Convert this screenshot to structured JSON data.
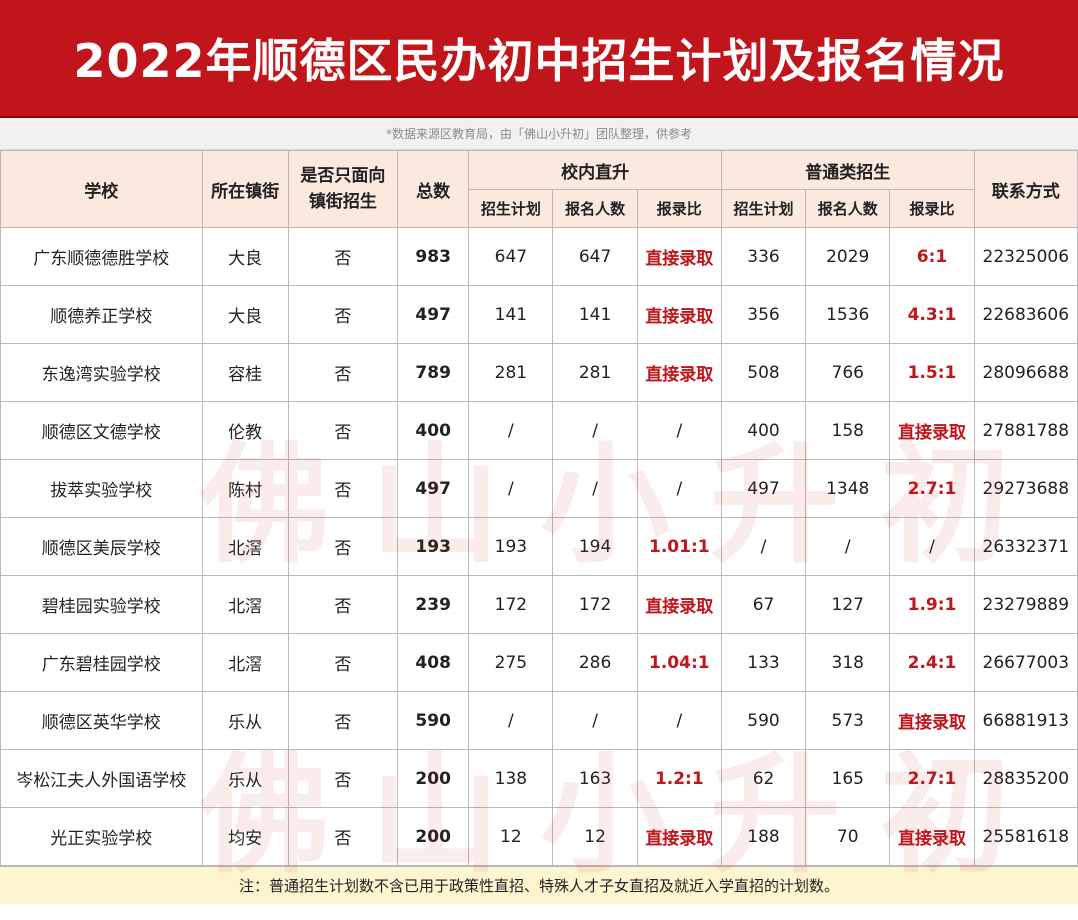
{
  "title": "2022年顺德区民办初中招生计划及报名情况",
  "source_note": "*数据来源区教育局，由「佛山小升初」团队整理，供参考",
  "watermark": "佛山小升初",
  "colors": {
    "banner": "#c0151b",
    "header_bg": "#fbe9df",
    "accent_red": "#c0151b",
    "footer_bg": "#fdf4d0"
  },
  "headers": {
    "school": "学校",
    "town": "所在镇街",
    "local_only": "是否只面向镇街招生",
    "total": "总数",
    "internal": "校内直升",
    "general": "普通类招生",
    "contact": "联系方式",
    "plan": "招生计划",
    "applicants": "报名人数",
    "ratio": "报录比"
  },
  "rows": [
    {
      "school": "广东顺德德胜学校",
      "town": "大良",
      "local_only": "否",
      "total": "983",
      "in_plan": "647",
      "in_app": "647",
      "in_ratio": "直接录取",
      "gen_plan": "336",
      "gen_app": "2029",
      "gen_ratio": "6:1",
      "phone": "22325006"
    },
    {
      "school": "顺德养正学校",
      "town": "大良",
      "local_only": "否",
      "total": "497",
      "in_plan": "141",
      "in_app": "141",
      "in_ratio": "直接录取",
      "gen_plan": "356",
      "gen_app": "1536",
      "gen_ratio": "4.3:1",
      "phone": "22683606"
    },
    {
      "school": "东逸湾实验学校",
      "town": "容桂",
      "local_only": "否",
      "total": "789",
      "in_plan": "281",
      "in_app": "281",
      "in_ratio": "直接录取",
      "gen_plan": "508",
      "gen_app": "766",
      "gen_ratio": "1.5:1",
      "phone": "28096688"
    },
    {
      "school": "顺德区文德学校",
      "town": "伦教",
      "local_only": "否",
      "total": "400",
      "in_plan": "/",
      "in_app": "/",
      "in_ratio": "/",
      "gen_plan": "400",
      "gen_app": "158",
      "gen_ratio": "直接录取",
      "phone": "27881788"
    },
    {
      "school": "拔萃实验学校",
      "town": "陈村",
      "local_only": "否",
      "total": "497",
      "in_plan": "/",
      "in_app": "/",
      "in_ratio": "/",
      "gen_plan": "497",
      "gen_app": "1348",
      "gen_ratio": "2.7:1",
      "phone": "29273688"
    },
    {
      "school": "顺德区美辰学校",
      "town": "北滘",
      "local_only": "否",
      "total": "193",
      "in_plan": "193",
      "in_app": "194",
      "in_ratio": "1.01:1",
      "gen_plan": "/",
      "gen_app": "/",
      "gen_ratio": "/",
      "phone": "26332371"
    },
    {
      "school": "碧桂园实验学校",
      "town": "北滘",
      "local_only": "否",
      "total": "239",
      "in_plan": "172",
      "in_app": "172",
      "in_ratio": "直接录取",
      "gen_plan": "67",
      "gen_app": "127",
      "gen_ratio": "1.9:1",
      "phone": "23279889"
    },
    {
      "school": "广东碧桂园学校",
      "town": "北滘",
      "local_only": "否",
      "total": "408",
      "in_plan": "275",
      "in_app": "286",
      "in_ratio": "1.04:1",
      "gen_plan": "133",
      "gen_app": "318",
      "gen_ratio": "2.4:1",
      "phone": "26677003"
    },
    {
      "school": "顺德区英华学校",
      "town": "乐从",
      "local_only": "否",
      "total": "590",
      "in_plan": "/",
      "in_app": "/",
      "in_ratio": "/",
      "gen_plan": "590",
      "gen_app": "573",
      "gen_ratio": "直接录取",
      "phone": "66881913"
    },
    {
      "school": "岑松江夫人外国语学校",
      "town": "乐从",
      "local_only": "否",
      "total": "200",
      "in_plan": "138",
      "in_app": "163",
      "in_ratio": "1.2:1",
      "gen_plan": "62",
      "gen_app": "165",
      "gen_ratio": "2.7:1",
      "phone": "28835200"
    },
    {
      "school": "光正实验学校",
      "town": "均安",
      "local_only": "否",
      "total": "200",
      "in_plan": "12",
      "in_app": "12",
      "in_ratio": "直接录取",
      "gen_plan": "188",
      "gen_app": "70",
      "gen_ratio": "直接录取",
      "phone": "25581618"
    }
  ],
  "footer_note": "注：普通招生计划数不含已用于政策性直招、特殊人才子女直招及就近入学直招的计划数。"
}
